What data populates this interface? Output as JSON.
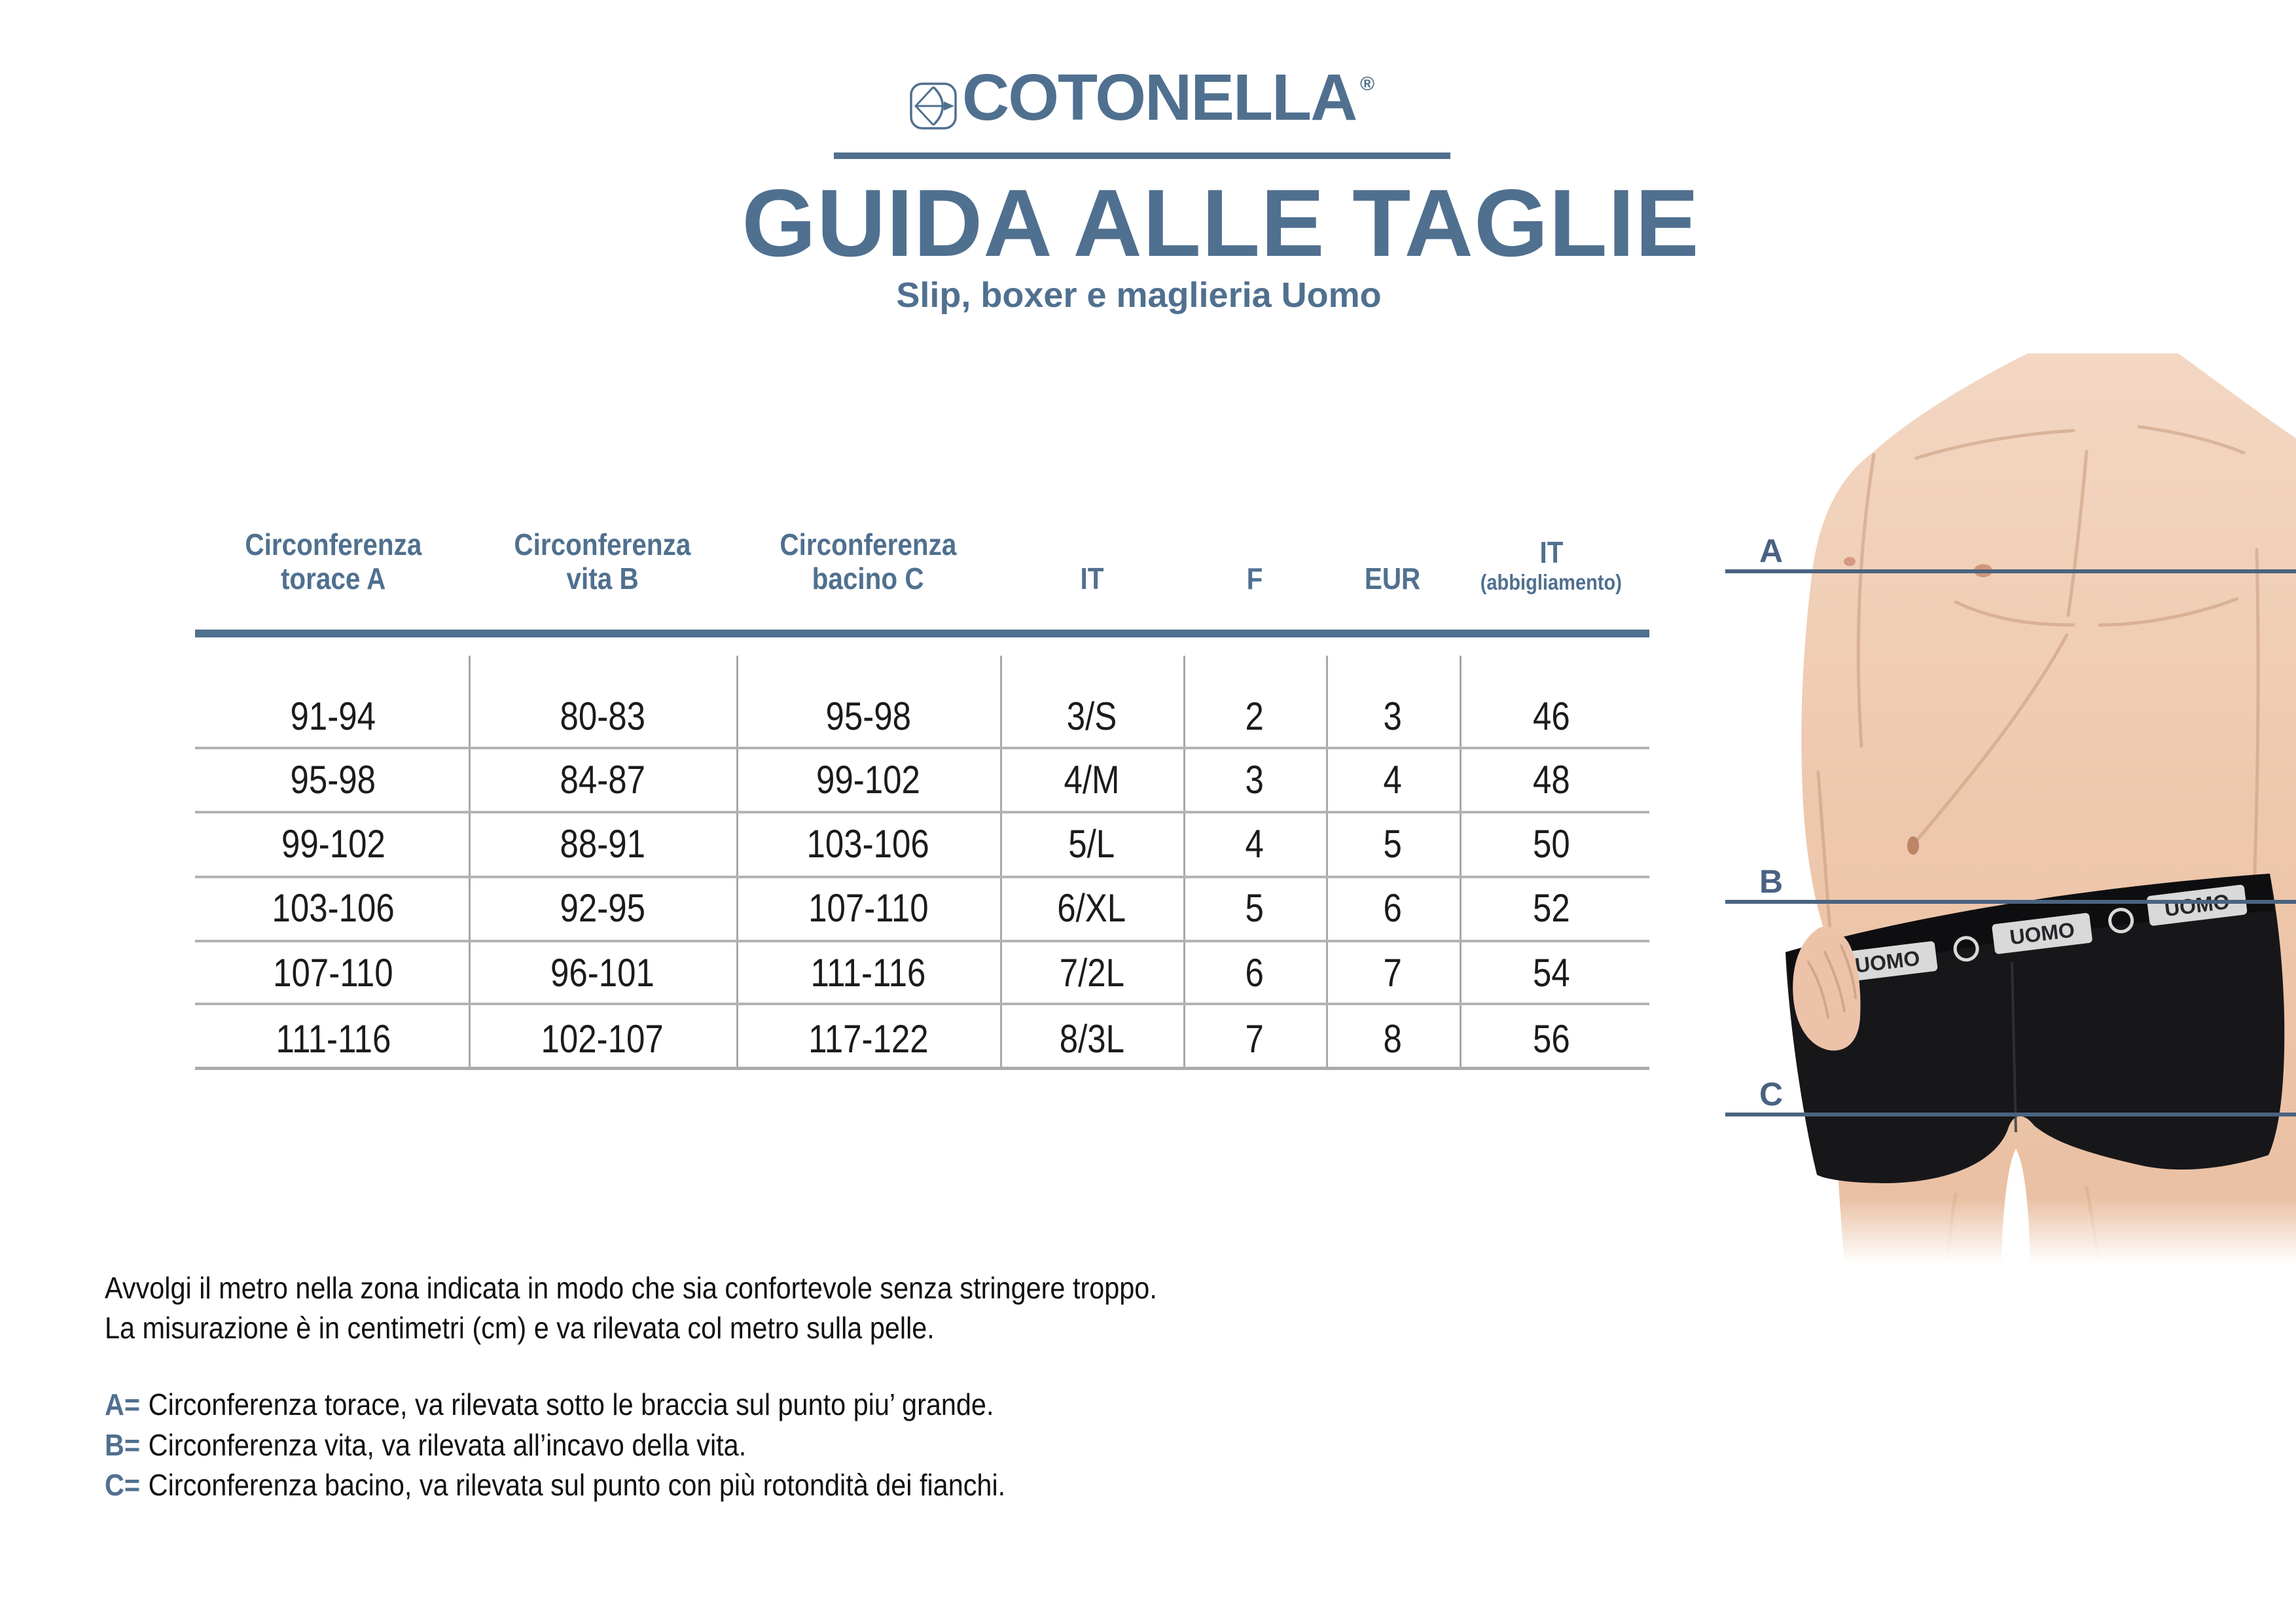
{
  "brand": {
    "logo_text": "COTONELLA",
    "registered_mark": "®"
  },
  "header": {
    "title": "GUIDA ALLE TAGLIE",
    "subtitle": "Slip, boxer e maglieria Uomo"
  },
  "table": {
    "columns": [
      {
        "label_line1": "Circonferenza",
        "label_line2": "torace A"
      },
      {
        "label_line1": "Circonferenza",
        "label_line2": "vita B"
      },
      {
        "label_line1": "Circonferenza",
        "label_line2": "bacino C"
      },
      {
        "label": "IT"
      },
      {
        "label": "F"
      },
      {
        "label": "EUR"
      },
      {
        "label": "IT",
        "sublabel": "(abbigliamento)"
      }
    ],
    "rows": [
      [
        "91-94",
        "80-83",
        "95-98",
        "3/S",
        "2",
        "3",
        "46"
      ],
      [
        "95-98",
        "84-87",
        "99-102",
        "4/M",
        "3",
        "4",
        "48"
      ],
      [
        "99-102",
        "88-91",
        "103-106",
        "5/L",
        "4",
        "5",
        "50"
      ],
      [
        "103-106",
        "92-95",
        "107-110",
        "6/XL",
        "5",
        "6",
        "52"
      ],
      [
        "107-110",
        "96-101",
        "111-116",
        "7/2L",
        "6",
        "7",
        "54"
      ],
      [
        "111-116",
        "102-107",
        "117-122",
        "8/3L",
        "7",
        "8",
        "56"
      ]
    ]
  },
  "measure_labels": {
    "a": "A",
    "b": "B",
    "c": "C"
  },
  "model": {
    "waistband_text": "UOMO"
  },
  "notes": {
    "intro_line1": "Avvolgi il metro nella zona indicata in modo che sia confortevole senza stringere troppo.",
    "intro_line2": "La misurazione è in centimetri (cm) e va rilevata col metro sulla pelle.",
    "definitions": [
      {
        "prefix": "A=",
        "text": "Circonferenza torace, va rilevata sotto le braccia sul punto piu’ grande."
      },
      {
        "prefix": "B=",
        "text": "Circonferenza vita, va rilevata all’incavo della vita."
      },
      {
        "prefix": "C=",
        "text": "Circonferenza bacino, va rilevata sul punto con più rotondità dei fianchi."
      }
    ]
  },
  "colors": {
    "brand_blue": "#50708f",
    "label_blue": "#4a6282",
    "line_gray": "#b3b3b3",
    "text_black": "#1b1b1b"
  }
}
